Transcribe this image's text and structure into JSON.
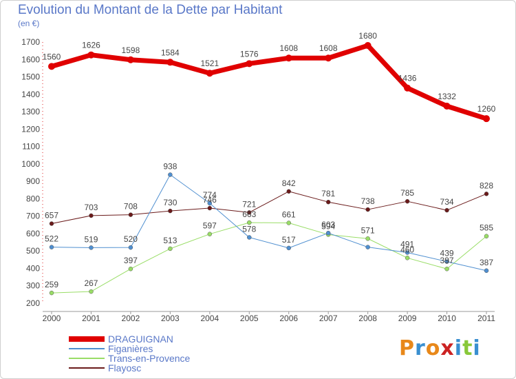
{
  "page": {
    "title": "Evolution du Montant de la Dette par Habitant",
    "unit": "(en €)",
    "logo": "Proxiti"
  },
  "chart_data": {
    "type": "line",
    "x": [
      "2000",
      "2001",
      "2002",
      "2003",
      "2004",
      "2005",
      "2006",
      "2007",
      "2008",
      "2009",
      "2010",
      "2011"
    ],
    "ylim": [
      200,
      1700
    ],
    "yticks": [
      200,
      300,
      400,
      500,
      600,
      700,
      800,
      900,
      1000,
      1100,
      1200,
      1300,
      1400,
      1500,
      1600,
      1700
    ],
    "grid": false,
    "legend_position": "bottom-left",
    "series": [
      {
        "name": "DRAGUIGNAN",
        "color": "#e00000",
        "width": 7,
        "marker": 5,
        "labels": [
          "1560",
          "1626",
          "1598",
          "1584",
          "1521",
          "1576",
          "1608",
          "1608",
          "1680",
          "1436",
          "1332",
          "1260"
        ],
        "values": [
          1560,
          1626,
          1598,
          1584,
          1521,
          1576,
          1608,
          1608,
          1680,
          1436,
          1332,
          1260
        ]
      },
      {
        "name": "Figanières",
        "color": "#4f8fd0",
        "width": 1,
        "marker": 3,
        "labels": [
          "522",
          "519",
          "520",
          "938",
          "774",
          "578",
          "517",
          "603",
          "",
          "491",
          "439",
          "387"
        ],
        "values": [
          522,
          519,
          520,
          938,
          774,
          578,
          517,
          603,
          522,
          491,
          439,
          387
        ]
      },
      {
        "name": "Trans-en-Provence",
        "color": "#99dd66",
        "width": 1,
        "marker": 3,
        "labels": [
          "259",
          "267",
          "397",
          "513",
          "597",
          "663",
          "661",
          "594",
          "571",
          "460",
          "397",
          "585"
        ],
        "values": [
          259,
          267,
          397,
          513,
          597,
          663,
          661,
          594,
          571,
          460,
          397,
          585
        ]
      },
      {
        "name": "Flayosc",
        "color": "#6a1a1a",
        "width": 1,
        "marker": 3,
        "labels": [
          "657",
          "703",
          "708",
          "730",
          "746",
          "721",
          "842",
          "781",
          "738",
          "785",
          "734",
          "828"
        ],
        "values": [
          657,
          703,
          708,
          730,
          746,
          721,
          842,
          781,
          738,
          785,
          734,
          828
        ]
      }
    ]
  }
}
